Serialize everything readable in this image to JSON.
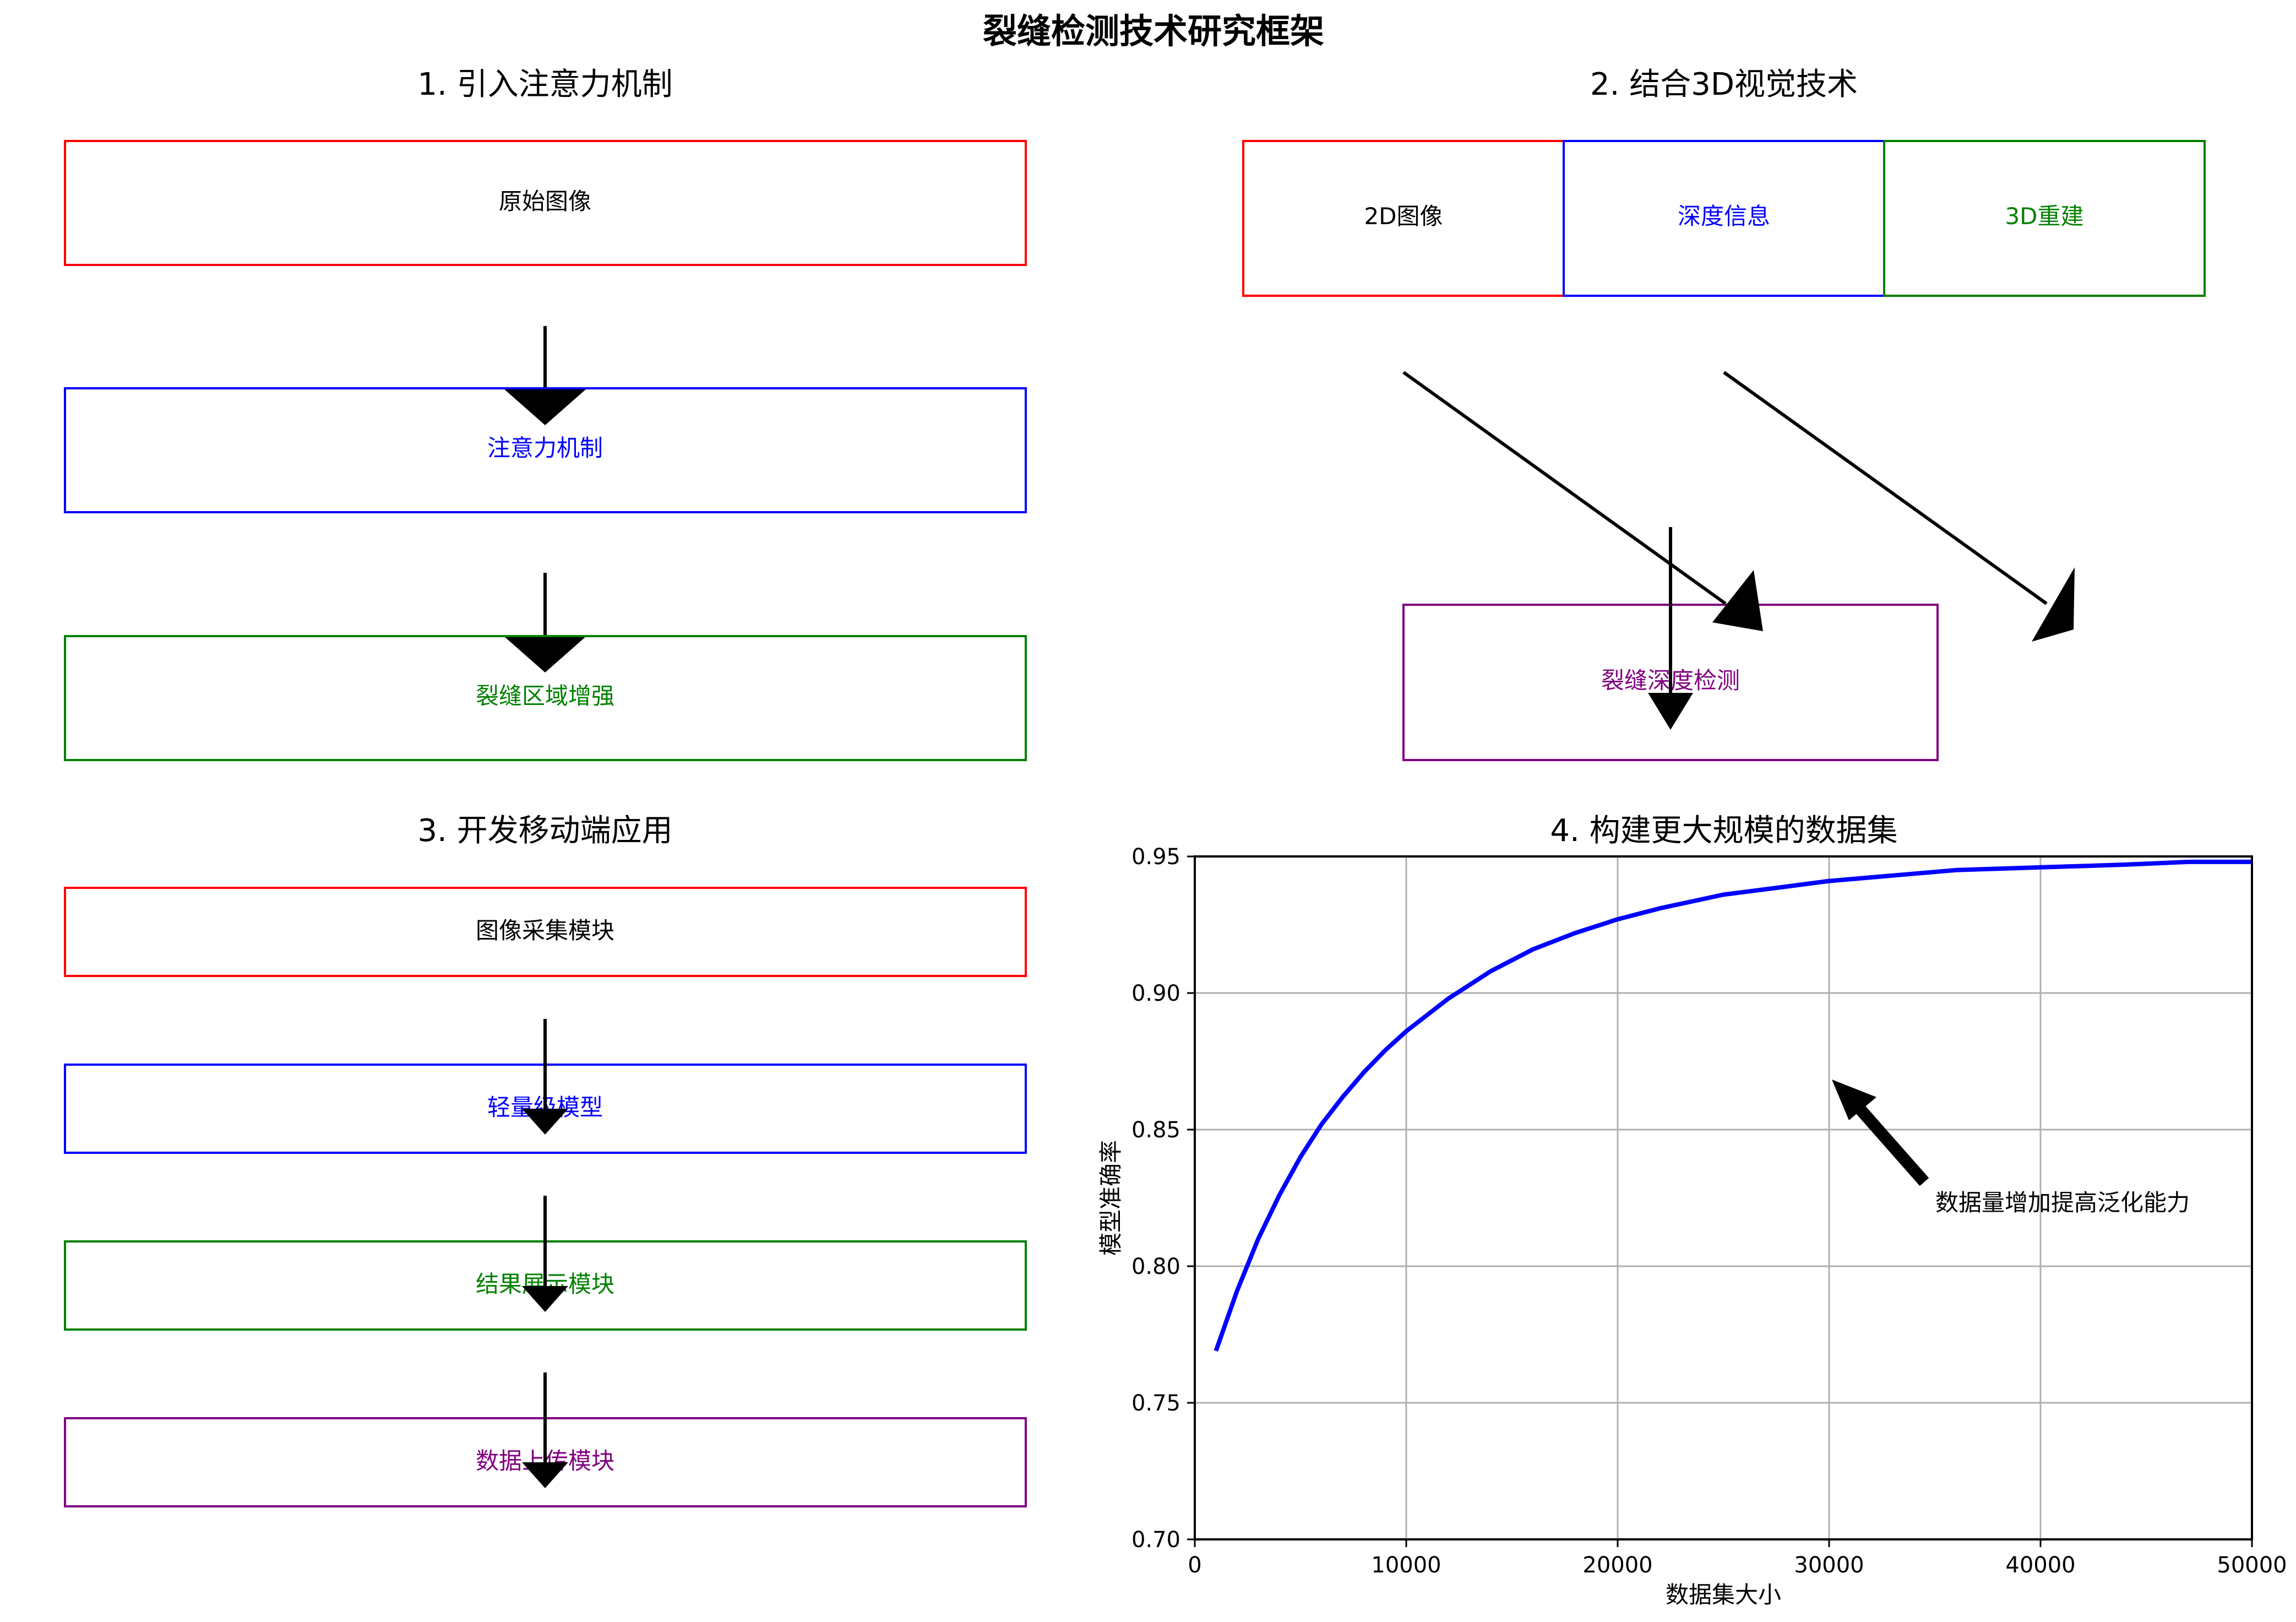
{
  "title": "裂缝检测技术研究框架",
  "panels": {
    "p1": {
      "title": "1. 引入注意力机制",
      "boxes": [
        {
          "label": "原始图像",
          "color": "#ff0000",
          "text_color": "#000000"
        },
        {
          "label": "注意力机制",
          "color": "#0000ff",
          "text_color": "#0000ff"
        },
        {
          "label": "裂缝区域增强",
          "color": "#008000",
          "text_color": "#008000"
        }
      ]
    },
    "p2": {
      "title": "2. 结合3D视觉技术",
      "boxes": [
        {
          "label": "2D图像",
          "color": "#ff0000",
          "text_color": "#000000"
        },
        {
          "label": "深度信息",
          "color": "#0000ff",
          "text_color": "#0000ff"
        },
        {
          "label": "3D重建",
          "color": "#008000",
          "text_color": "#008000"
        }
      ],
      "result_box": {
        "label": "裂缝深度检测",
        "color": "#800080",
        "text_color": "#800080"
      }
    },
    "p3": {
      "title": "3. 开发移动端应用",
      "boxes": [
        {
          "label": "图像采集模块",
          "color": "#ff0000",
          "text_color": "#000000"
        },
        {
          "label": "轻量级模型",
          "color": "#0000ff",
          "text_color": "#0000ff"
        },
        {
          "label": "结果展示模块",
          "color": "#008000",
          "text_color": "#008000"
        },
        {
          "label": "数据上传模块",
          "color": "#800080",
          "text_color": "#800080"
        }
      ]
    },
    "p4": {
      "title": "4. 构建更大规模的数据集",
      "annotation": "数据量增加提高泛化能力"
    }
  },
  "chart_data": {
    "type": "line",
    "xlabel": "数据集大小",
    "ylabel": "模型准确率",
    "xlim": [
      0,
      50000
    ],
    "ylim": [
      0.7,
      0.95
    ],
    "xticks": [
      "0",
      "10000",
      "20000",
      "30000",
      "40000",
      "50000"
    ],
    "yticks": [
      "0.70",
      "0.75",
      "0.80",
      "0.85",
      "0.90",
      "0.95"
    ],
    "grid": true,
    "series": [
      {
        "color": "#0000ff",
        "x": [
          1000,
          2000,
          3000,
          4000,
          5000,
          6000,
          7000,
          8000,
          9000,
          10000,
          12000,
          14000,
          16000,
          18000,
          20000,
          22000,
          25000,
          28000,
          30000,
          33000,
          36000,
          40000,
          44000,
          47000,
          50000
        ],
        "y": [
          0.769,
          0.791,
          0.81,
          0.826,
          0.84,
          0.852,
          0.862,
          0.871,
          0.879,
          0.886,
          0.898,
          0.908,
          0.916,
          0.922,
          0.927,
          0.931,
          0.936,
          0.939,
          0.941,
          0.943,
          0.945,
          0.946,
          0.947,
          0.948,
          0.948
        ]
      }
    ]
  }
}
